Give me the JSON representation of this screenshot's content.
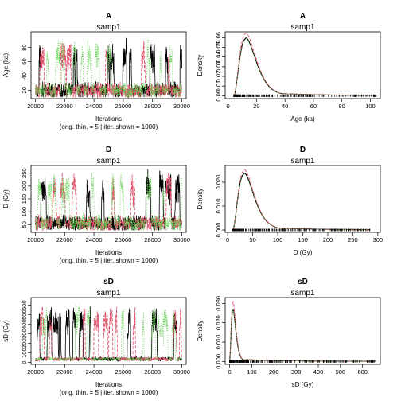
{
  "colors": {
    "chain1": "#000000",
    "chain2": "#DF536B",
    "chain3": "#61D04F"
  },
  "chart_data": [
    {
      "type": "line",
      "kind": "trace",
      "title": "A",
      "subtitle": "samp1",
      "xlabel": "Iterations",
      "xlabel2": "(orig. thin. = 5 | iter. shown = 1000)",
      "ylabel": "Age (ka)",
      "xlim": [
        19700,
        30300
      ],
      "ylim": [
        8,
        102
      ],
      "xticks": [
        20000,
        22000,
        24000,
        26000,
        28000,
        30000
      ],
      "yticks": [
        20,
        40,
        60,
        80
      ],
      "trace": {
        "x_start": 20000,
        "x_end": 30000,
        "n": 1000,
        "base": 16,
        "peak": 95,
        "floor": 10
      }
    },
    {
      "type": "line",
      "kind": "density",
      "title": "A",
      "subtitle": "samp1",
      "xlabel": "Age (ka)",
      "ylabel": "Density",
      "xlim": [
        -2,
        107
      ],
      "ylim": [
        -0.003,
        0.066
      ],
      "xticks": [
        0,
        20,
        40,
        60,
        80,
        100
      ],
      "yticks": [
        0.0,
        0.01,
        0.02,
        0.03,
        0.04,
        0.05,
        0.06
      ],
      "tick_labels_y": [
        "0.00",
        "0.01",
        "0.02",
        "0.03",
        "0.04",
        "0.05",
        "0.06"
      ],
      "density": {
        "x_min": 4,
        "x_max": 105,
        "mode": 12.5,
        "peak": 0.059,
        "peak_dashed": 0.064,
        "tail": 0.004
      }
    },
    {
      "type": "line",
      "kind": "trace",
      "title": "D",
      "subtitle": "samp1",
      "xlabel": "Iterations",
      "xlabel2": "(orig. thin. = 5 | iter. shown = 1000)",
      "ylabel": "D (Gy)",
      "xlim": [
        19700,
        30300
      ],
      "ylim": [
        20,
        280
      ],
      "xticks": [
        20000,
        22000,
        24000,
        26000,
        28000,
        30000
      ],
      "yticks": [
        50,
        100,
        150,
        200,
        250
      ],
      "trace": {
        "x_start": 20000,
        "x_end": 30000,
        "n": 1000,
        "base": 45,
        "peak": 270,
        "floor": 28
      }
    },
    {
      "type": "line",
      "kind": "density",
      "title": "D",
      "subtitle": "samp1",
      "xlabel": "D (Gy)",
      "ylabel": "Density",
      "xlim": [
        -5,
        305
      ],
      "ylim": [
        -0.001,
        0.027
      ],
      "xticks": [
        0,
        50,
        100,
        150,
        200,
        250,
        300
      ],
      "yticks": [
        0.0,
        0.01,
        0.02
      ],
      "tick_labels_y": [
        "0.000",
        "0.010",
        "0.020"
      ],
      "density": {
        "x_min": 10,
        "x_max": 285,
        "mode": 33,
        "peak": 0.0235,
        "peak_dashed": 0.025,
        "tail": 0.0015
      }
    },
    {
      "type": "line",
      "kind": "trace",
      "title": "sD",
      "subtitle": "samp1",
      "xlabel": "Iterations",
      "xlabel2": "(orig. thin. = 5 | iter. shown = 1000)",
      "ylabel": "sD (Gy)",
      "xlim": [
        19700,
        30300
      ],
      "ylim": [
        -20,
        680
      ],
      "xticks": [
        20000,
        22000,
        24000,
        26000,
        28000,
        30000
      ],
      "yticks": [
        0,
        100,
        200,
        300,
        400,
        500,
        600
      ],
      "trace": {
        "x_start": 20000,
        "x_end": 30000,
        "n": 1000,
        "base": 30,
        "peak": 640,
        "floor": 0
      }
    },
    {
      "type": "line",
      "kind": "density",
      "title": "sD",
      "subtitle": "samp1",
      "xlabel": "sD (Gy)",
      "ylabel": "Density",
      "xlim": [
        -20,
        680
      ],
      "ylim": [
        -0.0015,
        0.033
      ],
      "xticks": [
        0,
        100,
        200,
        300,
        400,
        500,
        600
      ],
      "yticks": [
        0.0,
        0.01,
        0.02,
        0.03
      ],
      "tick_labels_y": [
        "0.000",
        "0.010",
        "0.020",
        "0.030"
      ],
      "density": {
        "x_min": 0,
        "x_max": 660,
        "mode": 15,
        "peak": 0.027,
        "peak_dashed": 0.031,
        "tail": 0.001
      }
    }
  ]
}
